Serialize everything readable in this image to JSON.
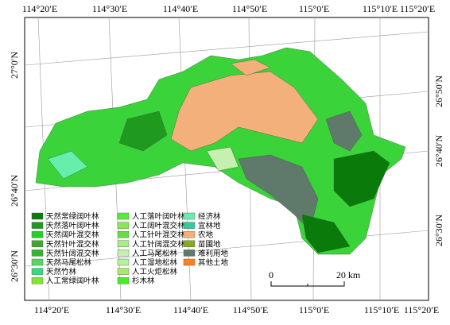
{
  "map": {
    "top_labels": [
      "114°20′E",
      "114°30′E",
      "114°40′E",
      "114°50′E",
      "115°0′E",
      "115°10′E",
      "115°20′E"
    ],
    "bottom_labels": [
      "114°20′E",
      "114°30′E",
      "114°40′E",
      "114°50′E",
      "115°0′E",
      "115°10′E",
      "115°20′E"
    ],
    "left_labels": [
      "27°0′N",
      "26°40′N",
      "26°30′N"
    ],
    "right_labels": [
      "26°50′N",
      "26°40′N",
      "26°30′N"
    ],
    "legend": [
      {
        "label": "天然常绿阔叶林",
        "color": "#0a7a0a"
      },
      {
        "label": "天然落叶阔叶林",
        "color": "#1f9a1f"
      },
      {
        "label": "天然阔叶混交林",
        "color": "#22d422"
      },
      {
        "label": "天然针叶混交林",
        "color": "#3fa82a"
      },
      {
        "label": "天然针阔混交林",
        "color": "#2eb82e"
      },
      {
        "label": "天然马尾松林",
        "color": "#58d85a"
      },
      {
        "label": "天然竹林",
        "color": "#2fe07a"
      },
      {
        "label": "人工常绿阔叶林",
        "color": "#7de82f"
      },
      {
        "label": "人工落叶阔叶林",
        "color": "#55ee33"
      },
      {
        "label": "人工阔叶混交林",
        "color": "#88e855"
      },
      {
        "label": "人工针叶混交林",
        "color": "#66dd44"
      },
      {
        "label": "人工针阔混交林",
        "color": "#a6ee88"
      },
      {
        "label": "人工马尾松林",
        "color": "#c6f0b0"
      },
      {
        "label": "人工湿地松林",
        "color": "#b5f29a"
      },
      {
        "label": "人工火炬松林",
        "color": "#a9e86a"
      },
      {
        "label": "杉木林",
        "color": "#44ee22"
      },
      {
        "label": "经济林",
        "color": "#66eeaa"
      },
      {
        "label": "宜林地",
        "color": "#33cc99"
      },
      {
        "label": "农地",
        "color": "#f4b07a"
      },
      {
        "label": "苗圃地",
        "color": "#88aa22"
      },
      {
        "label": "难利用地",
        "color": "#5f7a6a"
      },
      {
        "label": "其他土地",
        "color": "#ff7f1e"
      }
    ],
    "scale": {
      "start": "0",
      "end": "20 km"
    }
  }
}
